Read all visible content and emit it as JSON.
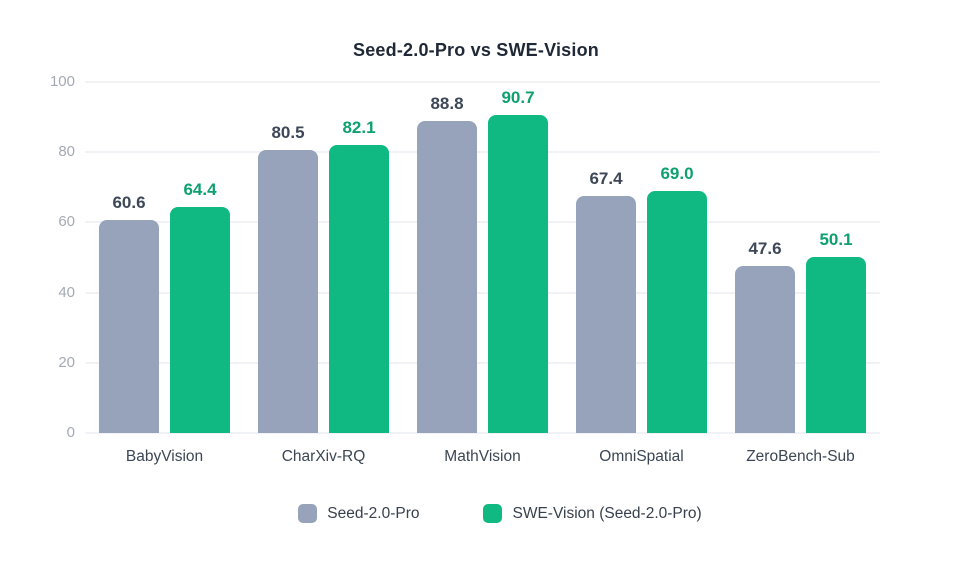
{
  "chart_data": {
    "type": "bar",
    "title": "Seed-2.0-Pro vs SWE-Vision",
    "categories": [
      "BabyVision",
      "CharXiv-RQ",
      "MathVision",
      "OmniSpatial",
      "ZeroBench-Sub"
    ],
    "series": [
      {
        "name": "Seed-2.0-Pro",
        "color": "#96A3BA",
        "label_color": "#3D4757",
        "values": [
          60.6,
          80.5,
          88.8,
          67.4,
          47.6
        ]
      },
      {
        "name": "SWE-Vision (Seed-2.0-Pro)",
        "color": "#10B981",
        "label_color": "#0EA06F",
        "values": [
          64.4,
          82.1,
          90.7,
          69.0,
          50.1
        ]
      }
    ],
    "xlabel": "",
    "ylabel": "",
    "ylim": [
      0,
      100
    ],
    "yticks": [
      0,
      20,
      40,
      60,
      80,
      100
    ],
    "grid": true,
    "legend_position": "bottom",
    "background_color": "#FFFFFF",
    "gridline_color": "#F0F2F5",
    "tick_label_color": "#A4AAB3",
    "category_label_color": "#3B4654",
    "title_color": "#1F2837"
  },
  "legend": {
    "items": [
      {
        "label": "Seed-2.0-Pro",
        "color": "#96A3BA"
      },
      {
        "label": "SWE-Vision (Seed-2.0-Pro)",
        "color": "#10B981"
      }
    ]
  }
}
